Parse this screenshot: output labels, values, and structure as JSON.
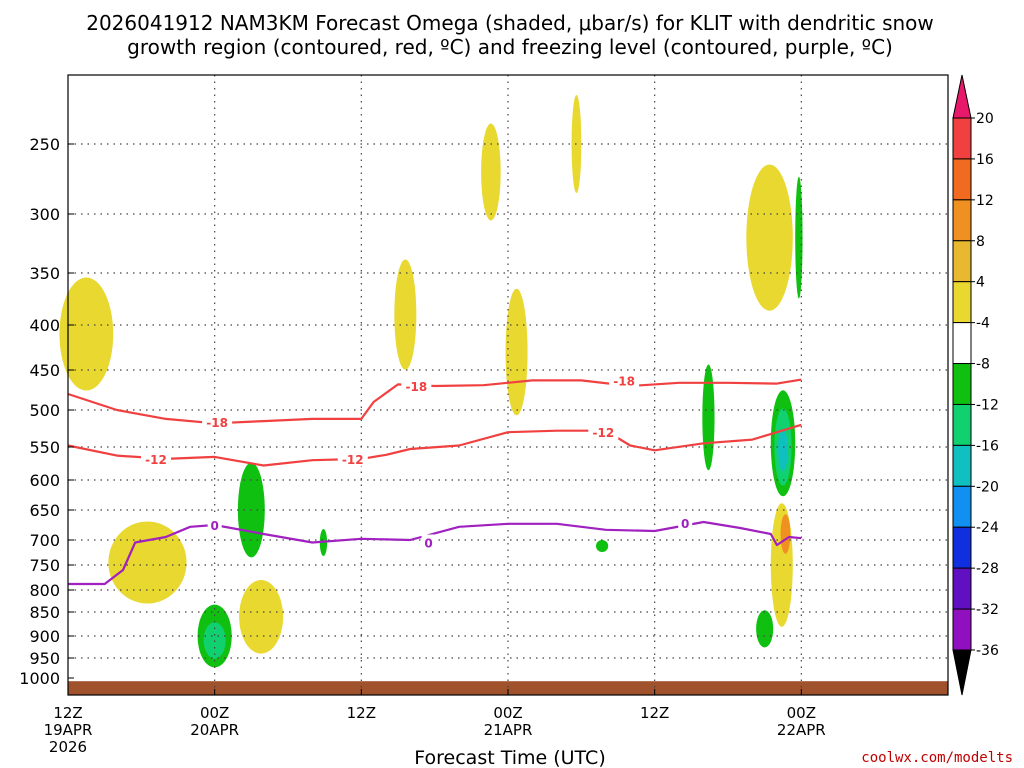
{
  "chart_data": {
    "type": "contour-filled time-height cross section",
    "title": [
      "2026041912 NAM3KM Forecast Omega (shaded, μbar/s) for KLIT with dendritic snow",
      "growth region (contoured, red, ºC) and freezing level (contoured, purple, ºC)"
    ],
    "xlabel": "Forecast Time (UTC)",
    "x_hours": [
      0,
      72
    ],
    "x_ticks": [
      {
        "hour": 0,
        "lines": [
          "12Z",
          "19APR",
          "2026"
        ]
      },
      {
        "hour": 12,
        "lines": [
          "00Z",
          "20APR"
        ]
      },
      {
        "hour": 24,
        "lines": [
          "12Z"
        ]
      },
      {
        "hour": 36,
        "lines": [
          "00Z",
          "21APR"
        ]
      },
      {
        "hour": 48,
        "lines": [
          "12Z"
        ]
      },
      {
        "hour": 60,
        "lines": [
          "00Z",
          "22APR"
        ]
      }
    ],
    "pressure_levels": [
      250,
      300,
      350,
      400,
      450,
      500,
      550,
      600,
      650,
      700,
      750,
      800,
      850,
      900,
      950,
      1000
    ],
    "colorbar": {
      "labels": [
        20,
        16,
        12,
        8,
        4,
        -4,
        -8,
        -12,
        -16,
        -20,
        -24,
        -28,
        -32,
        -36
      ],
      "colors": [
        "#e8196b",
        "#f04040",
        "#f06a20",
        "#f09020",
        "#e8b830",
        "#e8d830",
        "#ffffff",
        "#10c010",
        "#10d070",
        "#10c0c0",
        "#1090f0",
        "#1030e0",
        "#6010c0",
        "#9010c0",
        "#a0a0a0",
        "#000000"
      ]
    },
    "series": [
      {
        "name": "-18",
        "color": "#f04040",
        "hours": [
          0,
          4,
          8,
          12,
          16,
          20,
          24,
          25,
          27,
          30,
          34,
          38,
          42,
          46,
          50,
          54,
          58,
          60
        ],
        "pressure": [
          480,
          500,
          512,
          518,
          515,
          512,
          512,
          490,
          468,
          470,
          469,
          463,
          463,
          470,
          466,
          466,
          467,
          462
        ]
      },
      {
        "name": "-12",
        "color": "#f04040",
        "hours": [
          0,
          4,
          8,
          12,
          16,
          20,
          24,
          26,
          28,
          32,
          36,
          40,
          44,
          46,
          48,
          52,
          56,
          58,
          60
        ],
        "pressure": [
          548,
          563,
          568,
          565,
          578,
          570,
          568,
          562,
          553,
          548,
          530,
          528,
          528,
          548,
          555,
          545,
          540,
          530,
          520
        ]
      },
      {
        "name": "0",
        "color": "#a020c0",
        "hours": [
          0,
          3,
          4.5,
          5.5,
          8,
          10,
          12,
          16,
          20,
          24,
          28,
          32,
          36,
          40,
          44,
          48,
          52,
          55,
          57.5,
          58,
          59,
          60
        ],
        "pressure": [
          788,
          788,
          760,
          705,
          695,
          678,
          675,
          690,
          705,
          698,
          700,
          678,
          673,
          673,
          683,
          685,
          670,
          680,
          690,
          710,
          695,
          697
        ]
      }
    ],
    "contour_labels": [
      {
        "text": "-18",
        "hour": 12.2,
        "pressure": 516
      },
      {
        "text": "-18",
        "hour": 28.5,
        "pressure": 470
      },
      {
        "text": "-18",
        "hour": 45.5,
        "pressure": 463
      },
      {
        "text": "-12",
        "hour": 7.2,
        "pressure": 568
      },
      {
        "text": "-12",
        "hour": 23.3,
        "pressure": 568
      },
      {
        "text": "-12",
        "hour": 43.8,
        "pressure": 530
      },
      {
        "text": "0",
        "hour": 12,
        "pressure": 675
      },
      {
        "text": "0",
        "hour": 29.5,
        "pressure": 705
      },
      {
        "text": "0",
        "hour": 50.5,
        "pressure": 672
      }
    ],
    "shaded_regions": [
      {
        "band": "4 to 8",
        "hour": 1.5,
        "pressure": 410,
        "hour_radius": 2.2,
        "pressure_radius": 60,
        "color": "#e8d830"
      },
      {
        "band": "4 to 8",
        "hour": 6.5,
        "pressure": 745,
        "hour_radius": 3.2,
        "pressure_radius": 80,
        "color": "#e8d830"
      },
      {
        "band": "4 to 8",
        "hour": 15.8,
        "pressure": 860,
        "hour_radius": 1.8,
        "pressure_radius": 80,
        "color": "#e8d830"
      },
      {
        "band": "4 to 8",
        "hour": 27.6,
        "pressure": 390,
        "hour_radius": 0.9,
        "pressure_radius": 55,
        "color": "#e8d830"
      },
      {
        "band": "4 to 8",
        "hour": 34.6,
        "pressure": 270,
        "hour_radius": 0.8,
        "pressure_radius": 35,
        "color": "#e8d830"
      },
      {
        "band": "4 to 8",
        "hour": 36.7,
        "pressure": 430,
        "hour_radius": 0.9,
        "pressure_radius": 70,
        "color": "#e8d830"
      },
      {
        "band": "4 to 8",
        "hour": 41.6,
        "pressure": 250,
        "hour_radius": 0.4,
        "pressure_radius": 35,
        "color": "#e8d830"
      },
      {
        "band": "4 to 8",
        "hour": 57.4,
        "pressure": 320,
        "hour_radius": 1.9,
        "pressure_radius": 60,
        "color": "#e8d830"
      },
      {
        "band": "4 to 8",
        "hour": 58.4,
        "pressure": 750,
        "hour_radius": 0.9,
        "pressure_radius": 120,
        "color": "#e8d830"
      },
      {
        "band": "8 to 12",
        "hour": 58.7,
        "pressure": 690,
        "hour_radius": 0.4,
        "pressure_radius": 35,
        "color": "#f09020"
      },
      {
        "band": "-4 to -8",
        "hour": 15.0,
        "pressure": 650,
        "hour_radius": 1.1,
        "pressure_radius": 80,
        "color": "#10c010"
      },
      {
        "band": "-4 to -8",
        "hour": 20.9,
        "pressure": 705,
        "hour_radius": 0.3,
        "pressure_radius": 25,
        "color": "#10c010"
      },
      {
        "band": "-4 to -8",
        "hour": 43.7,
        "pressure": 712,
        "hour_radius": 0.5,
        "pressure_radius": 12,
        "color": "#10c010"
      },
      {
        "band": "-4 to -8",
        "hour": 52.4,
        "pressure": 510,
        "hour_radius": 0.5,
        "pressure_radius": 70,
        "color": "#10c010"
      },
      {
        "band": "-4 to -8",
        "hour": 57.0,
        "pressure": 885,
        "hour_radius": 0.7,
        "pressure_radius": 40,
        "color": "#10c010"
      },
      {
        "band": "-4 to -8",
        "hour": 59.8,
        "pressure": 320,
        "hour_radius": 0.3,
        "pressure_radius": 50,
        "color": "#10c010"
      },
      {
        "band": "-4 to -8",
        "hour": 12.0,
        "pressure": 900,
        "hour_radius": 1.4,
        "pressure_radius": 70,
        "color": "#10c010"
      },
      {
        "band": "-8 to -12",
        "hour": 12.0,
        "pressure": 910,
        "hour_radius": 0.9,
        "pressure_radius": 40,
        "color": "#10d070"
      },
      {
        "band": "-4 to -8",
        "hour": 58.5,
        "pressure": 545,
        "hour_radius": 1.0,
        "pressure_radius": 75,
        "color": "#10c010"
      },
      {
        "band": "-8 to -12",
        "hour": 58.5,
        "pressure": 550,
        "hour_radius": 0.7,
        "pressure_radius": 55,
        "color": "#10d070"
      },
      {
        "band": "-12 to -16",
        "hour": 58.5,
        "pressure": 555,
        "hour_radius": 0.4,
        "pressure_radius": 30,
        "color": "#10c0c0"
      }
    ],
    "surface": {
      "pressure": 1008,
      "color": "#a0522d"
    }
  },
  "credit": "coolwx.com/modelts"
}
